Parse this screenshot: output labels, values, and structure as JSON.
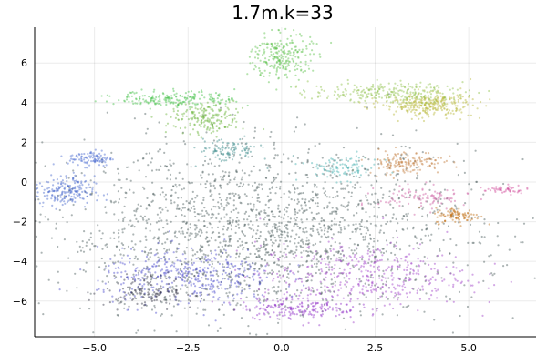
{
  "chart_data": {
    "type": "scatter",
    "title": "1.7m.k=33",
    "xlabel": "",
    "ylabel": "",
    "xlim": [
      -6.6,
      6.8
    ],
    "ylim": [
      -7.8,
      7.8
    ],
    "x_ticks": [
      -5.0,
      -2.5,
      0.0,
      2.5,
      5.0
    ],
    "x_tick_labels": [
      "−5.0",
      "−2.5",
      "0.0",
      "2.5",
      "5.0"
    ],
    "y_ticks": [
      -6,
      -4,
      -2,
      0,
      2,
      4,
      6
    ],
    "y_tick_labels": [
      "−6",
      "−4",
      "−2",
      "0",
      "2",
      "4",
      "6"
    ],
    "grid": true,
    "legend": "none",
    "point_count_approx": 1700000,
    "clusters": [
      {
        "name": "diffuse-core",
        "cx": -0.5,
        "cy": -2.5,
        "sx": 2.8,
        "sy": 2.1,
        "weight": 40,
        "color": "#4a5a5c"
      },
      {
        "name": "top-green-peak",
        "cx": 0.0,
        "cy": 6.3,
        "sx": 0.4,
        "sy": 0.6,
        "weight": 5,
        "color": "#5cc24a"
      },
      {
        "name": "upper-right-yellow",
        "cx": 3.9,
        "cy": 3.9,
        "sx": 0.6,
        "sy": 0.3,
        "weight": 6,
        "color": "#b8b83a"
      },
      {
        "name": "upper-middle-green",
        "cx": 2.8,
        "cy": 4.5,
        "sx": 1.0,
        "sy": 0.25,
        "weight": 5,
        "color": "#8ec24a"
      },
      {
        "name": "upper-left-green",
        "cx": -2.8,
        "cy": 4.2,
        "sx": 0.8,
        "sy": 0.2,
        "weight": 4,
        "color": "#44c24a"
      },
      {
        "name": "mid-left-green",
        "cx": -2.0,
        "cy": 3.2,
        "sx": 0.5,
        "sy": 0.4,
        "weight": 4,
        "color": "#6ab33a"
      },
      {
        "name": "left-blue",
        "cx": -5.8,
        "cy": -0.5,
        "sx": 0.4,
        "sy": 0.4,
        "weight": 4,
        "color": "#4466cc"
      },
      {
        "name": "left-blue-upper",
        "cx": -5.1,
        "cy": 1.2,
        "sx": 0.3,
        "sy": 0.2,
        "weight": 2,
        "color": "#4a6ad0"
      },
      {
        "name": "right-orange",
        "cx": 4.7,
        "cy": -1.7,
        "sx": 0.3,
        "sy": 0.2,
        "weight": 2,
        "color": "#c07018"
      },
      {
        "name": "right-orange-mid",
        "cx": 3.3,
        "cy": 1.0,
        "sx": 0.5,
        "sy": 0.3,
        "weight": 3,
        "color": "#c07a3a"
      },
      {
        "name": "bottom-magenta",
        "cx": 2.2,
        "cy": -4.7,
        "sx": 1.4,
        "sy": 0.8,
        "weight": 8,
        "color": "#a040c8"
      },
      {
        "name": "bottom-purple",
        "cx": 0.5,
        "cy": -6.3,
        "sx": 0.8,
        "sy": 0.3,
        "weight": 4,
        "color": "#9030c8"
      },
      {
        "name": "bottom-left-blue",
        "cx": -2.5,
        "cy": -4.8,
        "sx": 1.2,
        "sy": 0.7,
        "weight": 8,
        "color": "#4a4acc"
      },
      {
        "name": "dark-lower-left",
        "cx": -3.5,
        "cy": -5.5,
        "sx": 0.6,
        "sy": 0.4,
        "weight": 3,
        "color": "#333344"
      },
      {
        "name": "cyan-mid-right",
        "cx": 1.6,
        "cy": 0.7,
        "sx": 0.5,
        "sy": 0.3,
        "weight": 2,
        "color": "#44b0b0"
      },
      {
        "name": "teal-mid",
        "cx": -1.4,
        "cy": 1.6,
        "sx": 0.4,
        "sy": 0.3,
        "weight": 2,
        "color": "#3a8a8a"
      },
      {
        "name": "pink-right",
        "cx": 3.8,
        "cy": -0.8,
        "sx": 0.6,
        "sy": 0.3,
        "weight": 2,
        "color": "#cc5aa0"
      },
      {
        "name": "far-right-pink",
        "cx": 6.0,
        "cy": -0.4,
        "sx": 0.3,
        "sy": 0.1,
        "weight": 1,
        "color": "#d04a9a"
      }
    ]
  }
}
